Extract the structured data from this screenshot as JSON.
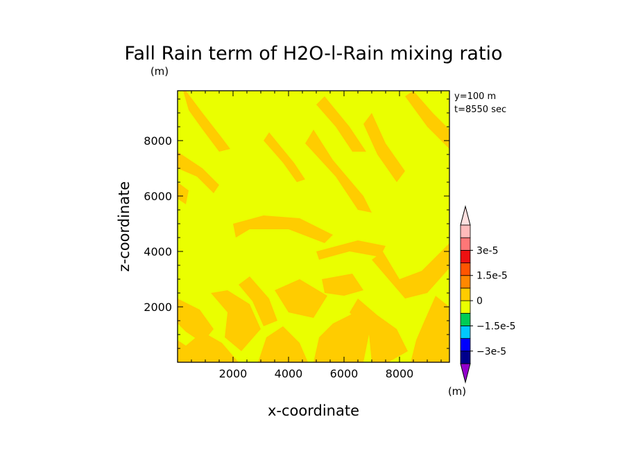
{
  "chart_data": {
    "type": "heatmap",
    "title": "Fall Rain term of H2O-l-Rain mixing ratio",
    "units_label": "(m)",
    "xlabel": "x-coordinate",
    "ylabel": "z-coordinate",
    "xlim": [
      0,
      9800
    ],
    "ylim": [
      0,
      9800
    ],
    "xticks": [
      2000,
      4000,
      6000,
      8000
    ],
    "yticks": [
      2000,
      4000,
      6000,
      8000
    ],
    "xtick_labels": [
      "2000",
      "4000",
      "6000",
      "8000"
    ],
    "ytick_labels": [
      "2000",
      "4000",
      "6000",
      "8000"
    ],
    "annotations": [
      "y=100 m",
      "t=8550 sec"
    ],
    "background_level_color": "#eaff00",
    "field_patches": {
      "color": "#ffcc00",
      "level": "0 to 7.5e-6",
      "regions": [
        [
          [
            0,
            7600
          ],
          [
            900,
            7000
          ],
          [
            1500,
            6400
          ],
          [
            1300,
            6100
          ],
          [
            700,
            6700
          ],
          [
            0,
            7000
          ]
        ],
        [
          [
            300,
            9800
          ],
          [
            900,
            9000
          ],
          [
            1600,
            8100
          ],
          [
            1900,
            7700
          ],
          [
            1500,
            7600
          ],
          [
            900,
            8400
          ],
          [
            400,
            9100
          ],
          [
            200,
            9800
          ]
        ],
        [
          [
            0,
            6500
          ],
          [
            400,
            6200
          ],
          [
            300,
            5700
          ],
          [
            0,
            5900
          ]
        ],
        [
          [
            3300,
            8300
          ],
          [
            4200,
            7200
          ],
          [
            4600,
            6600
          ],
          [
            4300,
            6500
          ],
          [
            3800,
            7200
          ],
          [
            3100,
            8000
          ]
        ],
        [
          [
            4900,
            8400
          ],
          [
            5600,
            7300
          ],
          [
            6700,
            6000
          ],
          [
            7000,
            5400
          ],
          [
            6500,
            5500
          ],
          [
            5700,
            6700
          ],
          [
            4600,
            7900
          ]
        ],
        [
          [
            5300,
            9600
          ],
          [
            6200,
            8500
          ],
          [
            6800,
            7600
          ],
          [
            6300,
            7600
          ],
          [
            5700,
            8500
          ],
          [
            5000,
            9300
          ]
        ],
        [
          [
            7000,
            9000
          ],
          [
            7500,
            7900
          ],
          [
            8200,
            6900
          ],
          [
            7900,
            6500
          ],
          [
            7200,
            7500
          ],
          [
            6700,
            8600
          ]
        ],
        [
          [
            8500,
            9800
          ],
          [
            9200,
            9000
          ],
          [
            9800,
            8400
          ],
          [
            9800,
            7700
          ],
          [
            9000,
            8500
          ],
          [
            8200,
            9600
          ]
        ],
        [
          [
            2000,
            5000
          ],
          [
            3100,
            5300
          ],
          [
            4400,
            5200
          ],
          [
            5600,
            4600
          ],
          [
            5300,
            4300
          ],
          [
            4000,
            4800
          ],
          [
            2600,
            4800
          ],
          [
            2100,
            4500
          ]
        ],
        [
          [
            5000,
            4000
          ],
          [
            6500,
            4400
          ],
          [
            7500,
            4200
          ],
          [
            7300,
            3800
          ],
          [
            6200,
            4000
          ],
          [
            5100,
            3700
          ]
        ],
        [
          [
            7400,
            4000
          ],
          [
            8000,
            3000
          ],
          [
            8800,
            3300
          ],
          [
            9800,
            4300
          ],
          [
            9800,
            3400
          ],
          [
            9000,
            2500
          ],
          [
            8200,
            2300
          ],
          [
            7600,
            3000
          ],
          [
            7000,
            3700
          ]
        ],
        [
          [
            5200,
            3000
          ],
          [
            6300,
            3200
          ],
          [
            6700,
            2600
          ],
          [
            6000,
            2400
          ],
          [
            5300,
            2500
          ]
        ],
        [
          [
            0,
            2300
          ],
          [
            800,
            1900
          ],
          [
            1300,
            1200
          ],
          [
            900,
            700
          ],
          [
            300,
            1100
          ],
          [
            0,
            1400
          ]
        ],
        [
          [
            0,
            0
          ],
          [
            2200,
            0
          ],
          [
            1600,
            700
          ],
          [
            900,
            1100
          ],
          [
            300,
            600
          ],
          [
            0,
            800
          ]
        ],
        [
          [
            1200,
            2500
          ],
          [
            1800,
            1800
          ],
          [
            1700,
            900
          ],
          [
            2300,
            400
          ],
          [
            3000,
            1200
          ],
          [
            2600,
            2100
          ],
          [
            1800,
            2600
          ]
        ],
        [
          [
            2600,
            3100
          ],
          [
            3300,
            2300
          ],
          [
            3600,
            1500
          ],
          [
            3100,
            1300
          ],
          [
            2700,
            2200
          ],
          [
            2200,
            2800
          ]
        ],
        [
          [
            3500,
            2600
          ],
          [
            4400,
            3000
          ],
          [
            5400,
            2400
          ],
          [
            4900,
            1600
          ],
          [
            4000,
            1800
          ]
        ],
        [
          [
            2900,
            0
          ],
          [
            4700,
            0
          ],
          [
            4400,
            700
          ],
          [
            3800,
            1300
          ],
          [
            3200,
            900
          ]
        ],
        [
          [
            4900,
            0
          ],
          [
            6700,
            0
          ],
          [
            6900,
            1000
          ],
          [
            6400,
            1800
          ],
          [
            5600,
            1400
          ],
          [
            5100,
            900
          ]
        ],
        [
          [
            6500,
            2300
          ],
          [
            7200,
            1700
          ],
          [
            7900,
            1200
          ],
          [
            8300,
            400
          ],
          [
            7600,
            0
          ],
          [
            7000,
            0
          ],
          [
            6900,
            1000
          ],
          [
            6200,
            1800
          ]
        ],
        [
          [
            8400,
            0
          ],
          [
            9800,
            0
          ],
          [
            9800,
            2000
          ],
          [
            9300,
            2400
          ],
          [
            8900,
            1500
          ],
          [
            8600,
            800
          ]
        ],
        [
          [
            3000,
            200
          ],
          [
            3600,
            600
          ],
          [
            4000,
            200
          ],
          [
            3600,
            0
          ]
        ]
      ]
    },
    "colorbar": {
      "orientation": "vertical",
      "placement": "right",
      "colors": [
        "#9400cc",
        "#00008c",
        "#0000ff",
        "#00c8ff",
        "#00cc55",
        "#eaff00",
        "#ffcc00",
        "#ff8800",
        "#ff5500",
        "#ee1111",
        "#ff7777",
        "#ffbbbb",
        "#ffe0e0"
      ],
      "labels": [
        {
          "value": "3e-5",
          "color_index": 10
        },
        {
          "value": "1.5e-5",
          "color_index": 8
        },
        {
          "value": "0",
          "color_index": 6
        },
        {
          "value": "−1.5e-5",
          "color_index": 4
        },
        {
          "value": "−3e-5",
          "color_index": 2
        }
      ],
      "units_label": "(m)"
    }
  }
}
